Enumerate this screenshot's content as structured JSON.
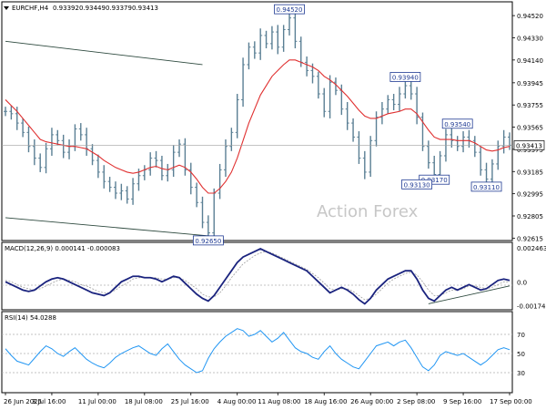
{
  "chart_data": [
    {
      "panel": "price",
      "type": "ohlc",
      "title": "EURCHF,H4",
      "ohlc_readout": [
        "0.93392",
        "0.93449",
        "0.93379",
        "0.93413"
      ],
      "last_price_label": "0.93413",
      "watermark": "Action Forex",
      "y_ticks": [
        "0.94520",
        "0.94330",
        "0.94140",
        "0.93945",
        "0.93755",
        "0.93565",
        "0.93375",
        "0.93185",
        "0.92995",
        "0.92805",
        "0.92615"
      ],
      "ylim": [
        0.9261,
        0.9456
      ],
      "x_ticks": [
        "26 Jun 2025",
        "3 Jul 16:00",
        "11 Jul 00:00",
        "18 Jul 08:00",
        "25 Jul 16:00",
        "4 Aug 00:00",
        "11 Aug 08:00",
        "18 Aug 16:00",
        "26 Aug 00:00",
        "2 Sep 08:00",
        "9 Sep 16:00",
        "17 Sep 00:00"
      ],
      "series": [
        {
          "type": "close_line",
          "color": "#5a7f94",
          "values": [
            0.937,
            0.9368,
            0.936,
            0.9352,
            0.934,
            0.933,
            0.9322,
            0.9338,
            0.935,
            0.9345,
            0.9335,
            0.934,
            0.9355,
            0.935,
            0.9338,
            0.9328,
            0.9318,
            0.931,
            0.9305,
            0.93,
            0.9302,
            0.9295,
            0.9308,
            0.9315,
            0.932,
            0.933,
            0.9328,
            0.9315,
            0.932,
            0.9335,
            0.9342,
            0.932,
            0.9305,
            0.9292,
            0.9275,
            0.9266,
            0.93,
            0.932,
            0.934,
            0.9352,
            0.938,
            0.941,
            0.9425,
            0.942,
            0.9435,
            0.9428,
            0.9438,
            0.9425,
            0.944,
            0.945,
            0.943,
            0.9412,
            0.9405,
            0.94,
            0.9385,
            0.937,
            0.9395,
            0.9388,
            0.9372,
            0.936,
            0.9348,
            0.933,
            0.9318,
            0.9345,
            0.9365,
            0.9372,
            0.938,
            0.9376,
            0.9385,
            0.9392,
            0.9385,
            0.9365,
            0.934,
            0.9326,
            0.9316,
            0.9332,
            0.935,
            0.9345,
            0.934,
            0.9348,
            0.9345,
            0.9335,
            0.932,
            0.9312,
            0.9325,
            0.934,
            0.9348,
            0.9341
          ]
        },
        {
          "type": "moving_average",
          "color": "#e03030",
          "values": [
            0.938,
            0.9375,
            0.937,
            0.9364,
            0.9358,
            0.9352,
            0.9346,
            0.9344,
            0.9343,
            0.9342,
            0.9341,
            0.934,
            0.934,
            0.9339,
            0.9338,
            0.9335,
            0.9332,
            0.9328,
            0.9325,
            0.9322,
            0.932,
            0.9318,
            0.9317,
            0.9318,
            0.932,
            0.9322,
            0.9323,
            0.9321,
            0.932,
            0.9322,
            0.9324,
            0.9322,
            0.9318,
            0.9312,
            0.9305,
            0.93,
            0.93,
            0.9304,
            0.931,
            0.9318,
            0.933,
            0.9345,
            0.936,
            0.9372,
            0.9384,
            0.9392,
            0.94,
            0.9405,
            0.941,
            0.9414,
            0.9414,
            0.9412,
            0.941,
            0.9408,
            0.9405,
            0.94,
            0.9397,
            0.9393,
            0.9388,
            0.9383,
            0.9377,
            0.9371,
            0.9366,
            0.9364,
            0.9364,
            0.9366,
            0.9368,
            0.9369,
            0.937,
            0.9372,
            0.9372,
            0.9368,
            0.9361,
            0.9354,
            0.9348,
            0.9346,
            0.9346,
            0.9346,
            0.9345,
            0.9345,
            0.9345,
            0.9343,
            0.934,
            0.9337,
            0.9336,
            0.9337,
            0.9339,
            0.934
          ]
        }
      ],
      "annotations": [
        {
          "label": "0.94520",
          "index": 49,
          "value": 0.9452,
          "side": "above"
        },
        {
          "label": "0.92650",
          "index": 35,
          "value": 0.9265,
          "side": "below"
        },
        {
          "label": "0.93170",
          "index": 74,
          "value": 0.9317,
          "side": "below"
        },
        {
          "label": "0.93940",
          "index": 69,
          "value": 0.9394,
          "side": "above"
        },
        {
          "label": "0.93540",
          "index": 78,
          "value": 0.9354,
          "side": "above"
        },
        {
          "label": "0.93130",
          "index": 71,
          "value": 0.9313,
          "side": "below"
        },
        {
          "label": "0.93110",
          "index": 83,
          "value": 0.9311,
          "side": "below"
        }
      ],
      "channel_lines": [
        {
          "x0": 0,
          "y0": 0.943,
          "x1": 34,
          "y1": 0.941
        },
        {
          "x0": 0,
          "y0": 0.9279,
          "x1": 36,
          "y1": 0.9263
        }
      ],
      "grid": "off"
    },
    {
      "panel": "macd",
      "type": "line",
      "title": "MACD(12,26,9) 0.000141 -0.000083",
      "y_ticks": [
        "0.002463",
        "0.0",
        "-0.00174"
      ],
      "ylim": [
        -0.0019,
        0.0026
      ],
      "series": [
        {
          "type": "macd",
          "color": "#1a237e",
          "values": [
            0.0,
            -0.0002,
            -0.0004,
            -0.0006,
            -0.0007,
            -0.0006,
            -0.0003,
            0.0,
            0.0002,
            0.0003,
            0.0002,
            0.0,
            -0.0002,
            -0.0004,
            -0.0006,
            -0.0008,
            -0.0009,
            -0.001,
            -0.0008,
            -0.0004,
            0.0,
            0.0002,
            0.0004,
            0.0004,
            0.0003,
            0.0003,
            0.0002,
            0.0,
            0.0002,
            0.0004,
            0.0003,
            -0.0001,
            -0.0005,
            -0.0009,
            -0.0012,
            -0.0014,
            -0.001,
            -0.0004,
            0.0002,
            0.0008,
            0.0014,
            0.0018,
            0.002,
            0.0022,
            0.0024,
            0.0022,
            0.002,
            0.0018,
            0.0016,
            0.0014,
            0.0012,
            0.001,
            0.0008,
            0.0004,
            0.0,
            -0.0004,
            -0.0008,
            -0.0006,
            -0.0004,
            -0.0006,
            -0.0009,
            -0.0013,
            -0.0016,
            -0.0012,
            -0.0006,
            -0.0002,
            0.0002,
            0.0004,
            0.0006,
            0.0008,
            0.0008,
            0.0002,
            -0.0006,
            -0.0012,
            -0.0014,
            -0.001,
            -0.0006,
            -0.0004,
            -0.0006,
            -0.0004,
            -0.0002,
            -0.0004,
            -0.0006,
            -0.0005,
            -0.0002,
            0.0001,
            0.0002,
            0.0001
          ]
        },
        {
          "type": "signal",
          "color": "#9e9e9e",
          "values": [
            0.0001,
            0.0,
            -0.0002,
            -0.0004,
            -0.0005,
            -0.0006,
            -0.0005,
            -0.0003,
            -0.0001,
            0.0001,
            0.0002,
            0.0001,
            0.0,
            -0.0002,
            -0.0003,
            -0.0005,
            -0.0007,
            -0.0008,
            -0.0008,
            -0.0006,
            -0.0003,
            -0.0001,
            0.0002,
            0.0003,
            0.0003,
            0.0003,
            0.0003,
            0.0002,
            0.0002,
            0.0003,
            0.0003,
            0.0001,
            -0.0002,
            -0.0005,
            -0.0009,
            -0.0011,
            -0.0011,
            -0.0008,
            -0.0003,
            0.0003,
            0.0008,
            0.0013,
            0.0016,
            0.0019,
            0.0021,
            0.0022,
            0.0021,
            0.0019,
            0.0017,
            0.0015,
            0.0013,
            0.0011,
            0.0009,
            0.0006,
            0.0003,
            -0.0001,
            -0.0005,
            -0.0006,
            -0.0005,
            -0.0005,
            -0.0007,
            -0.001,
            -0.0013,
            -0.0012,
            -0.0009,
            -0.0005,
            -0.0001,
            0.0002,
            0.0004,
            0.0006,
            0.0007,
            0.0005,
            0.0,
            -0.0006,
            -0.001,
            -0.001,
            -0.0008,
            -0.0006,
            -0.0006,
            -0.0005,
            -0.0003,
            -0.0003,
            -0.0004,
            -0.0005,
            -0.0004,
            -0.0002,
            0.0,
            0.0
          ]
        }
      ],
      "trendline": {
        "x0": 73,
        "y0": -0.0016,
        "x1": 87,
        "y1": -0.0003
      },
      "grid": "off"
    },
    {
      "panel": "rsi",
      "type": "line",
      "title": "RSI(14) 54.0288",
      "y_ticks": [
        "70",
        "50",
        "30"
      ],
      "ylim": [
        10,
        90
      ],
      "levels": [
        70,
        50,
        30
      ],
      "series": [
        {
          "type": "rsi",
          "color": "#2196f3",
          "values": [
            55,
            48,
            42,
            40,
            38,
            45,
            52,
            58,
            55,
            50,
            47,
            52,
            56,
            50,
            44,
            40,
            37,
            35,
            40,
            46,
            50,
            53,
            56,
            58,
            54,
            50,
            48,
            55,
            60,
            52,
            44,
            38,
            34,
            30,
            32,
            45,
            55,
            62,
            68,
            72,
            76,
            74,
            68,
            70,
            74,
            68,
            62,
            66,
            72,
            64,
            56,
            52,
            50,
            46,
            44,
            52,
            58,
            50,
            44,
            40,
            36,
            34,
            42,
            50,
            58,
            60,
            62,
            58,
            62,
            64,
            56,
            46,
            36,
            32,
            38,
            48,
            52,
            50,
            48,
            50,
            46,
            42,
            38,
            42,
            48,
            54,
            56,
            54
          ]
        }
      ],
      "grid": "off"
    }
  ]
}
